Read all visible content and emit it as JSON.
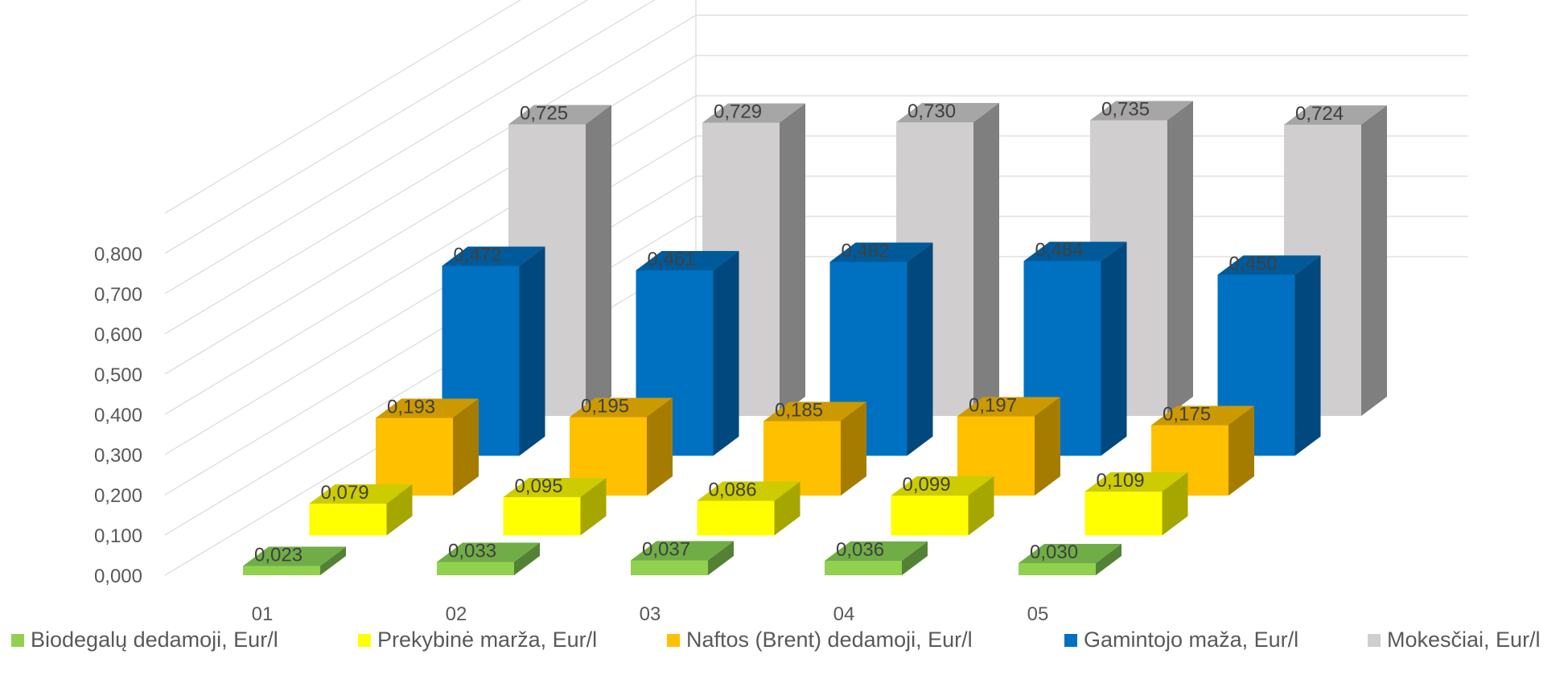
{
  "chart_data": {
    "type": "bar",
    "categories": [
      "01",
      "02",
      "03",
      "04",
      "05"
    ],
    "ylim": [
      0,
      0.8
    ],
    "yticks": [
      "0,000",
      "0,100",
      "0,200",
      "0,300",
      "0,400",
      "0,500",
      "0,600",
      "0,700",
      "0,800"
    ],
    "grid": true,
    "legend_position": "bottom",
    "series": [
      {
        "name": "Biodegalų dedamoji, Eur/l",
        "color": "#92D050",
        "side": "#548235",
        "top": "#70AD47",
        "values": [
          0.023,
          0.033,
          0.037,
          0.036,
          0.03
        ],
        "labels": [
          "0,023",
          "0,033",
          "0,037",
          "0,036",
          "0,030"
        ]
      },
      {
        "name": "Prekybinė marža, Eur/l",
        "color": "#FFFF00",
        "side": "#A6A600",
        "top": "#CCCC00",
        "values": [
          0.079,
          0.095,
          0.086,
          0.099,
          0.109
        ],
        "labels": [
          "0,079",
          "0,095",
          "0,086",
          "0,099",
          "0,109"
        ]
      },
      {
        "name": "Naftos (Brent) dedamoji, Eur/l",
        "color": "#FFC000",
        "side": "#A67C00",
        "top": "#CC9A00",
        "values": [
          0.193,
          0.195,
          0.185,
          0.197,
          0.175
        ],
        "labels": [
          "0,193",
          "0,195",
          "0,185",
          "0,197",
          "0,175"
        ]
      },
      {
        "name": "Gamintojo maža, Eur/l",
        "color": "#0070C0",
        "side": "#00487D",
        "top": "#005A9A",
        "values": [
          0.472,
          0.461,
          0.482,
          0.484,
          0.45
        ],
        "labels": [
          "0,472",
          "0,461",
          "0,482",
          "0,484",
          "0,450"
        ]
      },
      {
        "name": "Mokesčiai, Eur/l",
        "color": "#D0CECE",
        "side": "#7F7F7F",
        "top": "#A6A6A6",
        "values": [
          0.725,
          0.729,
          0.73,
          0.735,
          0.724
        ],
        "labels": [
          "0,725",
          "0,729",
          "0,730",
          "0,735",
          "0,724"
        ]
      }
    ]
  }
}
